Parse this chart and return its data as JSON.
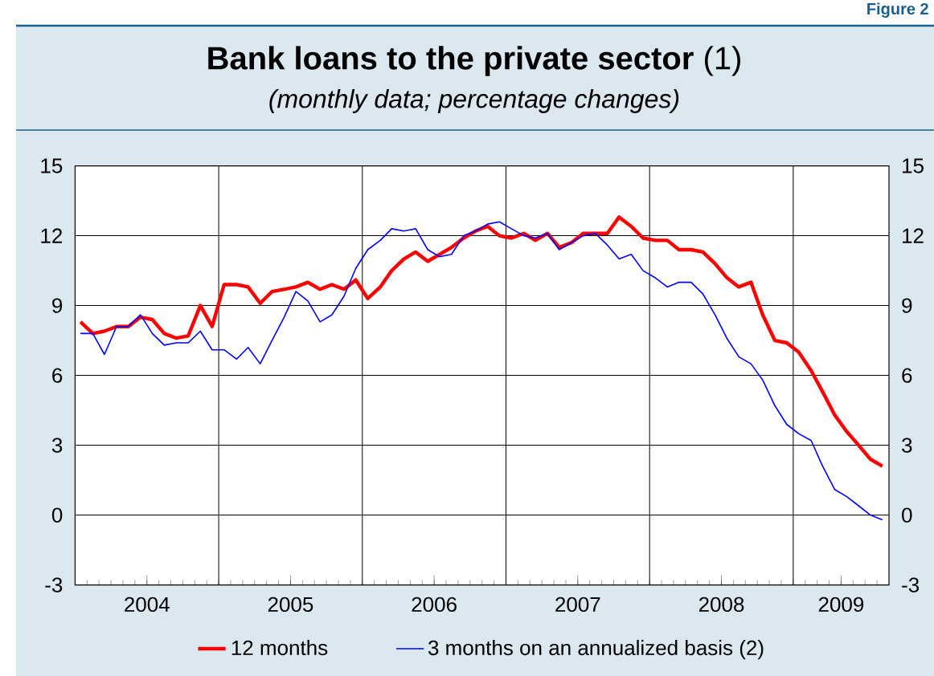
{
  "chart_data": {
    "type": "line",
    "title": "**Bank loans to the private sector** (1)",
    "subtitle": "(monthly data; percentage changes)",
    "annotations": [
      "Figure 2"
    ],
    "x": [
      "2004-01-15",
      "2004-02-15",
      "2004-03-15",
      "2004-04-15",
      "2004-05-15",
      "2004-06-15",
      "2004-07-15",
      "2004-08-15",
      "2004-09-15",
      "2004-10-15",
      "2004-11-15",
      "2004-12-15",
      "2005-01-15",
      "2005-02-15",
      "2005-03-15",
      "2005-04-15",
      "2005-05-15",
      "2005-06-15",
      "2005-07-15",
      "2005-08-15",
      "2005-09-15",
      "2005-10-15",
      "2005-11-15",
      "2005-12-15",
      "2006-01-15",
      "2006-02-15",
      "2006-03-15",
      "2006-04-15",
      "2006-05-15",
      "2006-06-15",
      "2006-07-15",
      "2006-08-15",
      "2006-09-15",
      "2006-10-15",
      "2006-11-15",
      "2006-12-15",
      "2007-01-15",
      "2007-02-15",
      "2007-03-15",
      "2007-04-15",
      "2007-05-15",
      "2007-06-15",
      "2007-07-15",
      "2007-08-15",
      "2007-09-15",
      "2007-10-15",
      "2007-11-15",
      "2007-12-15",
      "2008-01-15",
      "2008-02-15",
      "2008-03-15",
      "2008-04-15",
      "2008-05-15",
      "2008-06-15",
      "2008-07-15",
      "2008-08-15",
      "2008-09-15",
      "2008-10-15",
      "2008-11-15",
      "2008-12-15",
      "2009-01-15",
      "2009-02-15",
      "2009-03-15",
      "2009-04-15",
      "2009-05-15",
      "2009-06-15",
      "2009-07-15",
      "2009-08-15"
    ],
    "series": [
      {
        "name": "12 months",
        "color": "#ff0000",
        "values": [
          8.3,
          7.8,
          7.9,
          8.1,
          8.1,
          8.5,
          8.4,
          7.8,
          7.6,
          7.7,
          9.0,
          8.1,
          9.9,
          9.9,
          9.8,
          9.1,
          9.6,
          9.7,
          9.8,
          10.0,
          9.7,
          9.9,
          9.7,
          10.1,
          9.3,
          9.8,
          10.5,
          11.0,
          11.3,
          10.9,
          11.2,
          11.5,
          11.9,
          12.2,
          12.4,
          12.0,
          11.9,
          12.1,
          11.8,
          12.1,
          11.5,
          11.7,
          12.1,
          12.1,
          12.1,
          12.8,
          12.4,
          11.9,
          11.8,
          11.8,
          11.4,
          11.4,
          11.3,
          10.8,
          10.2,
          9.8,
          10.0,
          8.6,
          7.5,
          7.4,
          7.0,
          6.2,
          5.3,
          4.3,
          3.6,
          3.0,
          2.4,
          2.1
        ]
      },
      {
        "name": "3 months on an annualized basis (2)",
        "color": "#0000ff",
        "values": [
          7.8,
          7.8,
          6.9,
          8.1,
          8.1,
          8.6,
          7.8,
          7.3,
          7.4,
          7.4,
          7.9,
          7.1,
          7.1,
          6.7,
          7.2,
          6.5,
          7.5,
          8.5,
          9.6,
          9.2,
          8.3,
          8.6,
          9.4,
          10.6,
          11.4,
          11.8,
          12.3,
          12.2,
          12.3,
          11.4,
          11.1,
          11.2,
          12.0,
          12.2,
          12.5,
          12.6,
          12.3,
          12.0,
          11.9,
          12.1,
          11.4,
          11.7,
          12.0,
          12.1,
          11.6,
          11.0,
          11.2,
          10.5,
          10.2,
          9.8,
          10.0,
          10.0,
          9.5,
          8.6,
          7.6,
          6.8,
          6.5,
          5.8,
          4.7,
          3.9,
          3.5,
          3.2,
          2.1,
          1.1,
          0.8,
          0.4,
          0.0,
          -0.2
        ]
      }
    ],
    "xlim": [
      "2004-01-01",
      "2009-09-01"
    ],
    "xticks": [
      {
        "value": "2004-07-01",
        "label": "2004"
      },
      {
        "value": "2005-07-01",
        "label": "2005"
      },
      {
        "value": "2006-07-01",
        "label": "2006"
      },
      {
        "value": "2007-07-01",
        "label": "2007"
      },
      {
        "value": "2008-07-01",
        "label": "2008"
      },
      {
        "value": "2009-05-01",
        "label": "2009"
      },
      {
        "value": "2005-01-01",
        "label": null
      },
      {
        "value": "2006-01-01",
        "label": null
      },
      {
        "value": "2007-01-01",
        "label": null
      },
      {
        "value": "2008-01-01",
        "label": null
      },
      {
        "value": "2009-01-01",
        "label": null
      }
    ],
    "ylim": [
      -3,
      15
    ],
    "yticks": [
      -3,
      0,
      3,
      6,
      9,
      12,
      15
    ],
    "y2lim": [
      -3,
      15
    ],
    "y2ticks": [
      -3,
      0,
      3,
      6,
      9,
      12,
      15
    ],
    "grid": true,
    "legend": "bottom"
  }
}
